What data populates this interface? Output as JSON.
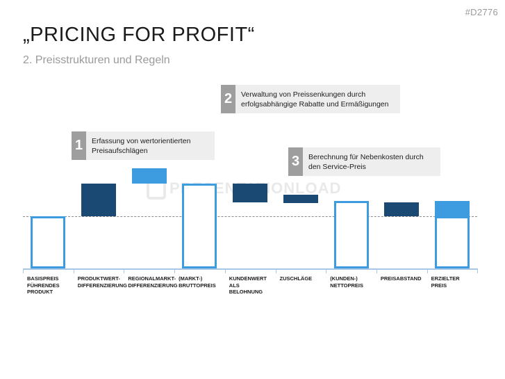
{
  "slide_id": "#D2776",
  "title": "„PRICING FOR PROFIT“",
  "subtitle": "2. Preisstrukturen und Regeln",
  "watermark": "PRESENTATIONLOAD",
  "callouts": [
    {
      "number": "1",
      "text": "Erfassung von wertorientierten\nPreisaufschlägen"
    },
    {
      "number": "2",
      "text": "Verwaltung von Preissenkungen durch\nerfolgsabhängige Rabatte und Ermäßigungen"
    },
    {
      "number": "3",
      "text": "Berechnung  für  Nebenkosten durch\nden Service-Preis"
    }
  ],
  "colors": {
    "dark_blue": "#1a4a74",
    "light_blue": "#3d9be0",
    "callout_bg": "#eeeeee",
    "callout_num": "#9e9e9e"
  },
  "chart_data": {
    "type": "bar",
    "subtype": "waterfall",
    "categories": [
      "BASISPREIS\nFÜHRENDES\nPRODUKT",
      "PRODUKTWERT-\nDIFFERENZIERUNG",
      "REGIONALMARKT-\nDIFFERENZIERUNG",
      "(MARKT-)\nBRUTTOPREIS",
      "KUNDENWERT\nALS\nBELOHNUNG",
      "ZUSCHLÄGE",
      "(KUNDEN-)\nNETTOPREIS",
      "PREISABSTAND",
      "ERZIELTER PREIS"
    ],
    "bars": [
      {
        "style": "outline",
        "bottom": 0,
        "top": 100
      },
      {
        "style": "dark",
        "bottom": 100,
        "top": 163
      },
      {
        "style": "light",
        "bottom": 163,
        "top": 192
      },
      {
        "style": "outline",
        "bottom": 0,
        "top": 163
      },
      {
        "style": "dark",
        "bottom": 127,
        "top": 163
      },
      {
        "style": "dark",
        "bottom": 125,
        "top": 141
      },
      {
        "style": "outline",
        "bottom": 0,
        "top": 130
      },
      {
        "style": "dark",
        "bottom": 100,
        "top": 127
      },
      {
        "style": "light-outline",
        "bottom": 0,
        "top": 130
      }
    ],
    "reference_line": 100,
    "grid": false,
    "xlabel": "",
    "ylabel": ""
  }
}
